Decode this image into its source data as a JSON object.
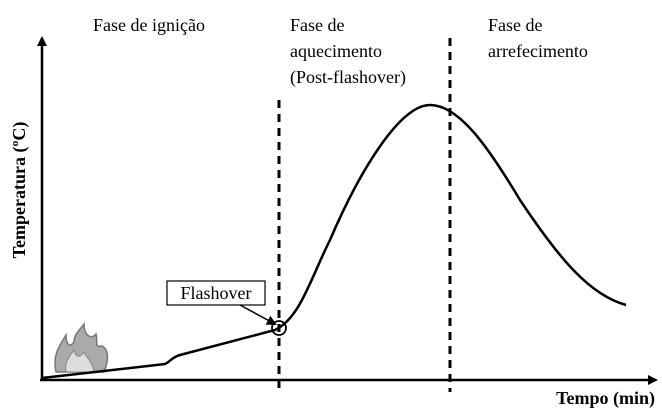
{
  "phases": [
    {
      "lines": [
        "Fase de ignição"
      ]
    },
    {
      "lines": [
        "Fase de",
        "aquecimento",
        "(Post-flashover)"
      ]
    },
    {
      "lines": [
        "Fase de",
        "arrefecimento"
      ]
    }
  ],
  "y_axis_label": "Temperatura (ºC)",
  "x_axis_label": "Tempo (min)",
  "event_label": "Flashover"
}
